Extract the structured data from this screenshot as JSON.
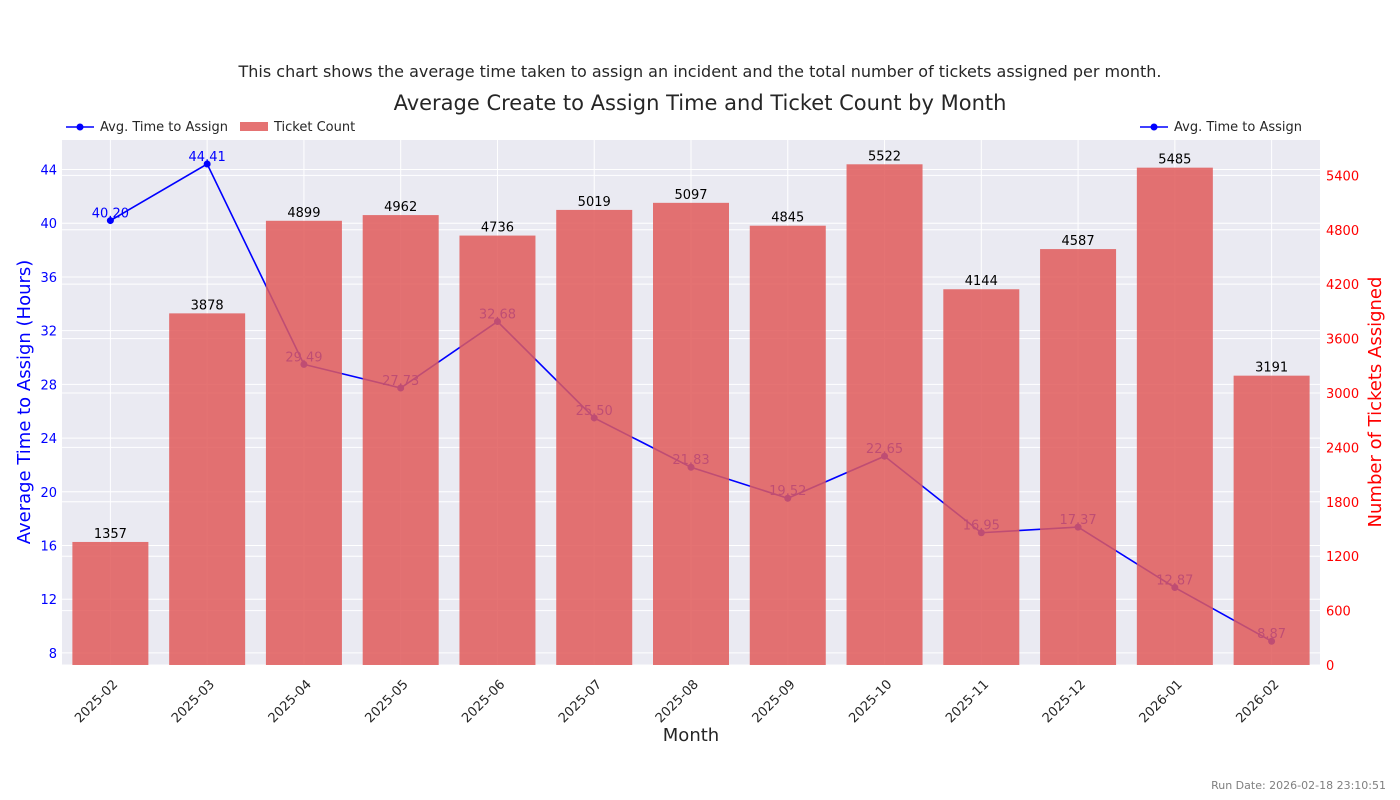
{
  "subtitle": "This chart shows the average time taken to assign an incident and the total number of tickets assigned per month.",
  "run_date": "Run Date: 2026-02-18 23:10:51",
  "chart_data": {
    "type": "bar+line",
    "title": "Average Create to Assign Time and Ticket Count by Month",
    "xlabel": "Month",
    "ylabel_left": "Average Time to Assign (Hours)",
    "ylabel_right": "Number of Tickets Assigned",
    "categories": [
      "2025-02",
      "2025-03",
      "2025-04",
      "2025-05",
      "2025-06",
      "2025-07",
      "2025-08",
      "2025-09",
      "2025-10",
      "2025-11",
      "2025-12",
      "2026-01",
      "2026-02"
    ],
    "series": [
      {
        "name": "Avg. Time to Assign",
        "type": "line",
        "axis": "left",
        "color": "#0000ff",
        "values": [
          40.2,
          44.41,
          29.49,
          27.73,
          32.68,
          25.5,
          21.83,
          19.52,
          22.65,
          16.95,
          17.37,
          12.87,
          8.87
        ]
      },
      {
        "name": "Ticket Count",
        "type": "bar",
        "axis": "right",
        "color": "#e05a5a",
        "values": [
          1357,
          3878,
          4899,
          4962,
          4736,
          5019,
          5097,
          4845,
          5522,
          4144,
          4587,
          5485,
          3191
        ]
      }
    ],
    "ylim_left": [
      7.1,
      46.2
    ],
    "ylim_right": [
      0,
      5790
    ],
    "yticks_left": [
      8,
      12,
      16,
      20,
      24,
      28,
      32,
      36,
      40,
      44
    ],
    "yticks_right": [
      0,
      600,
      1200,
      1800,
      2400,
      3000,
      3600,
      4200,
      4800,
      5400
    ],
    "grid": true,
    "legend_left": "top-left",
    "legend_right": "top-right"
  }
}
